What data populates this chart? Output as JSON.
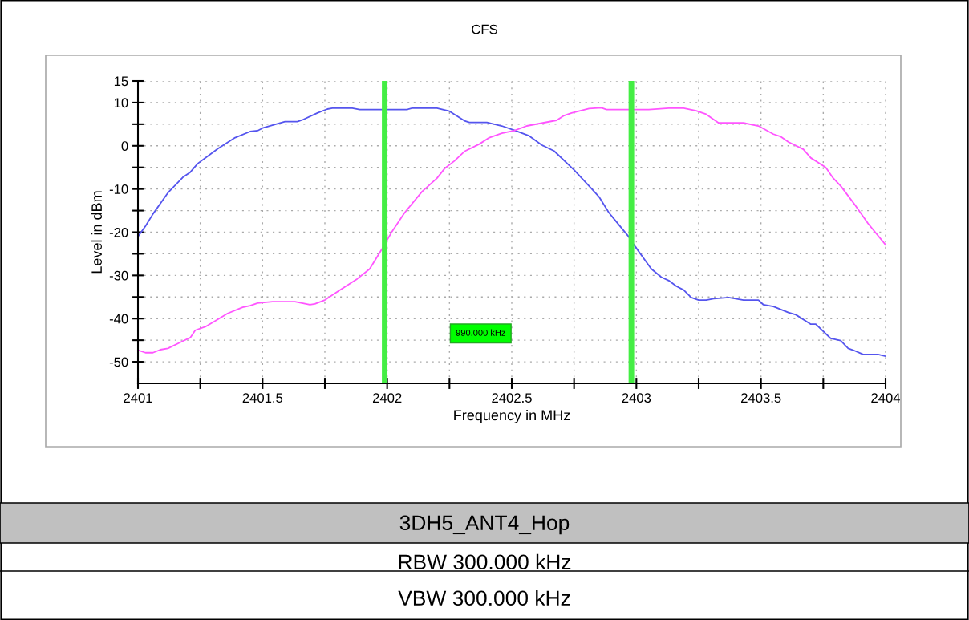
{
  "chart_data": {
    "type": "line",
    "title": "CFS",
    "xlabel": "Frequency in MHz",
    "ylabel": "Level in dBm",
    "xlim": [
      2401,
      2404
    ],
    "ylim": [
      -55,
      15
    ],
    "xticks": [
      2401,
      {
        "value": 2401.25,
        "label": null
      },
      2401.5,
      {
        "value": 2401.75,
        "label": null
      },
      2402,
      {
        "value": 2402.25,
        "label": null
      },
      2402.5,
      {
        "value": 2402.75,
        "label": null
      },
      2403,
      {
        "value": 2403.25,
        "label": null
      },
      2403.5,
      {
        "value": 2403.75,
        "label": null
      },
      2404
    ],
    "yticks": [
      15,
      10,
      {
        "value": 5,
        "label": null
      },
      0,
      {
        "value": -5,
        "label": null
      },
      -10,
      {
        "value": -15,
        "label": null
      },
      -20,
      {
        "value": -25,
        "label": null
      },
      -30,
      {
        "value": -35,
        "label": null
      },
      -40,
      {
        "value": -45,
        "label": null
      },
      -50
    ],
    "grid": true,
    "legend": false,
    "marker": "none",
    "line_style": "solid",
    "series": [
      {
        "color": "#5555ee",
        "x": [
          2401,
          2401.03,
          2401.06,
          2401.12,
          2401.18,
          2401.21,
          2401.24,
          2401.32,
          2401.39,
          2401.45,
          2401.48,
          2401.5,
          2401.59,
          2401.64,
          2401.66,
          2401.72,
          2401.76,
          2401.78,
          2401.86,
          2401.89,
          2401.99,
          2402.08,
          2402.1,
          2402.2,
          2402.25,
          2402.31,
          2402.33,
          2402.4,
          2402.46,
          2402.51,
          2402.57,
          2402.62,
          2402.67,
          2402.75,
          2402.82,
          2402.85,
          2402.89,
          2402.97,
          2402.99,
          2403.06,
          2403.1,
          2403.13,
          2403.16,
          2403.19,
          2403.22,
          2403.25,
          2403.28,
          2403.31,
          2403.37,
          2403.43,
          2403.49,
          2403.51,
          2403.55,
          2403.61,
          2403.64,
          2403.7,
          2403.72,
          2403.78,
          2403.82,
          2403.85,
          2403.87,
          2403.91,
          2403.97,
          2404
        ],
        "values": [
          -21.0,
          -18.6,
          -15.8,
          -10.9,
          -7.3,
          -6.1,
          -4.1,
          -0.7,
          1.9,
          3.3,
          3.5,
          4.1,
          5.6,
          5.6,
          6.0,
          7.6,
          8.5,
          8.7,
          8.7,
          8.4,
          8.4,
          8.4,
          8.7,
          8.7,
          8.0,
          5.8,
          5.4,
          5.4,
          4.6,
          3.6,
          2.3,
          0.2,
          -1.2,
          -5.6,
          -9.9,
          -11.8,
          -15.5,
          -21.1,
          -22.9,
          -28.5,
          -30.4,
          -31.2,
          -32.5,
          -33.4,
          -35.1,
          -35.7,
          -35.7,
          -35.4,
          -35.1,
          -35.7,
          -35.7,
          -36.8,
          -37.2,
          -38.6,
          -39.1,
          -41.3,
          -41.3,
          -44.6,
          -45.1,
          -46.9,
          -47.3,
          -48.3,
          -48.3,
          -48.7
        ]
      },
      {
        "color": "#ff55ff",
        "x": [
          2401,
          2401.03,
          2401.06,
          2401.09,
          2401.12,
          2401.18,
          2401.21,
          2401.23,
          2401.27,
          2401.32,
          2401.36,
          2401.42,
          2401.45,
          2401.48,
          2401.54,
          2401.63,
          2401.69,
          2401.71,
          2401.75,
          2401.81,
          2401.84,
          2401.88,
          2401.93,
          2401.98,
          2402.02,
          2402.07,
          2402.14,
          2402.2,
          2402.23,
          2402.27,
          2402.31,
          2402.37,
          2402.41,
          2402.46,
          2402.51,
          2402.56,
          2402.68,
          2402.71,
          2402.74,
          2402.81,
          2402.86,
          2402.88,
          2403.05,
          2403.13,
          2403.19,
          2403.24,
          2403.28,
          2403.33,
          2403.43,
          2403.49,
          2403.55,
          2403.58,
          2403.61,
          2403.67,
          2403.7,
          2403.76,
          2403.79,
          2403.82,
          2403.88,
          2403.93,
          2404
        ],
        "values": [
          -47.3,
          -47.9,
          -47.9,
          -47.2,
          -46.9,
          -45.2,
          -44.4,
          -42.7,
          -41.9,
          -40.2,
          -38.8,
          -37.4,
          -37.0,
          -36.4,
          -36.1,
          -36.1,
          -36.8,
          -36.6,
          -35.7,
          -33.4,
          -32.3,
          -30.8,
          -28.5,
          -23.8,
          -19.8,
          -15.5,
          -10.6,
          -7.5,
          -5.3,
          -3.5,
          -1.3,
          0.4,
          1.9,
          2.9,
          3.5,
          4.6,
          5.9,
          7.0,
          7.6,
          8.6,
          8.8,
          8.4,
          8.4,
          8.7,
          8.7,
          8.1,
          7.3,
          5.3,
          5.3,
          4.6,
          2.7,
          2.1,
          0.9,
          -0.8,
          -2.8,
          -5.0,
          -7.5,
          -9.3,
          -13.9,
          -18.0,
          -22.9
        ]
      }
    ],
    "ref_lines": [
      {
        "axis": "x",
        "value": 2401.99,
        "color": "#44ee44"
      },
      {
        "axis": "x",
        "value": 2402.98,
        "color": "#44ee44"
      }
    ],
    "annotations": [
      "990.000 kHz",
      "3DH5_ANT4_Hop",
      "RBW 300.000 kHz",
      "VBW 300.000 kHz"
    ]
  }
}
